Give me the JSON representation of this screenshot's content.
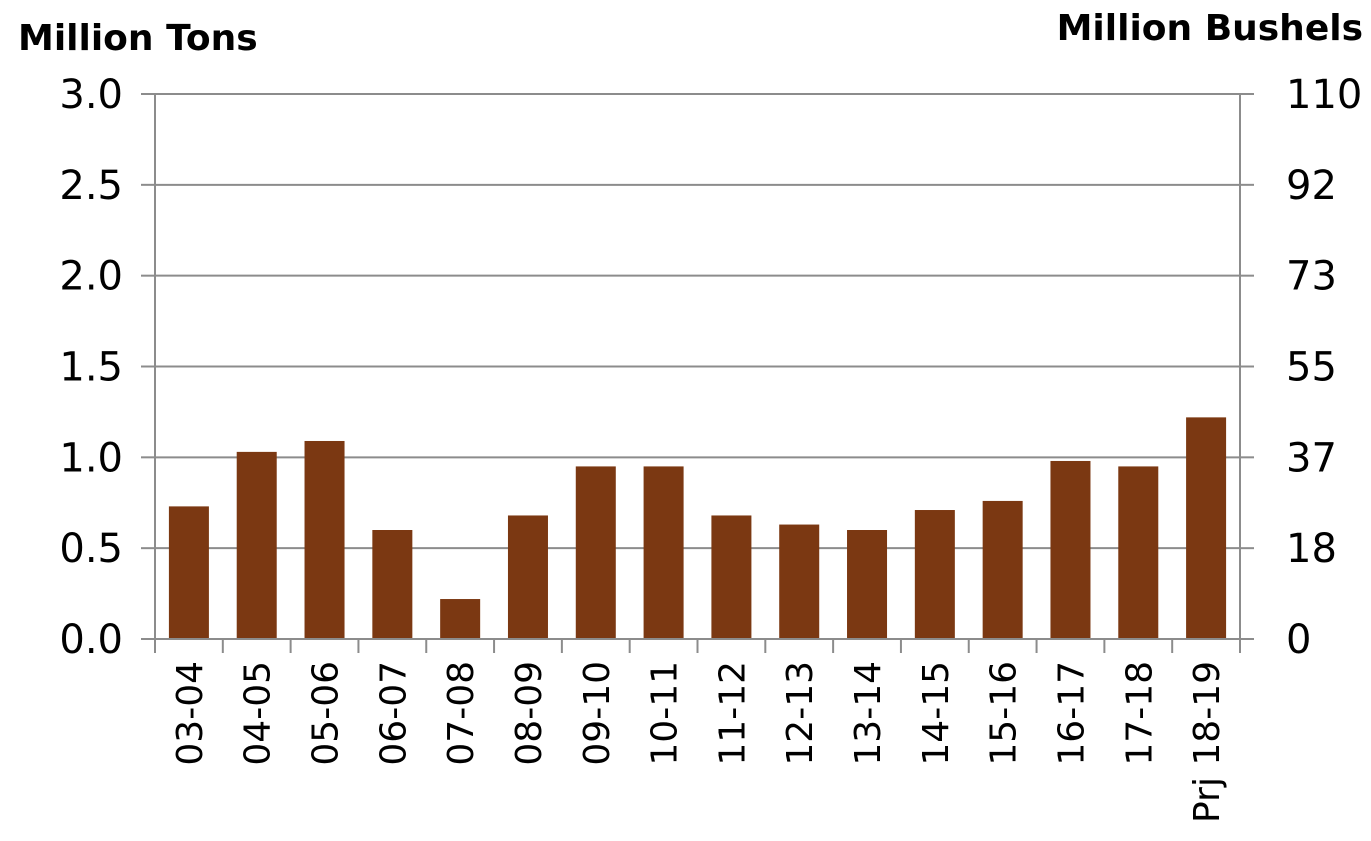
{
  "chart_data": {
    "type": "bar",
    "categories": [
      "03-04",
      "04-05",
      "05-06",
      "06-07",
      "07-08",
      "08-09",
      "09-10",
      "10-11",
      "11-12",
      "12-13",
      "13-14",
      "14-15",
      "15-16",
      "16-17",
      "17-18",
      "Prj 18-19"
    ],
    "values": [
      0.73,
      1.03,
      1.09,
      0.6,
      0.22,
      0.68,
      0.95,
      0.95,
      0.68,
      0.63,
      0.6,
      0.71,
      0.76,
      0.98,
      0.95,
      1.22
    ],
    "ylabel_left": "Million Tons",
    "ylabel_right": "Million Bushels",
    "ylim": [
      0,
      3.0
    ],
    "yticks_left": [
      "0.0",
      "0.5",
      "1.0",
      "1.5",
      "2.0",
      "2.5",
      "3.0"
    ],
    "yticks_right": [
      "0",
      "18",
      "37",
      "55",
      "73",
      "92",
      "110"
    ],
    "bar_color": "#7b3812",
    "grid": true
  }
}
